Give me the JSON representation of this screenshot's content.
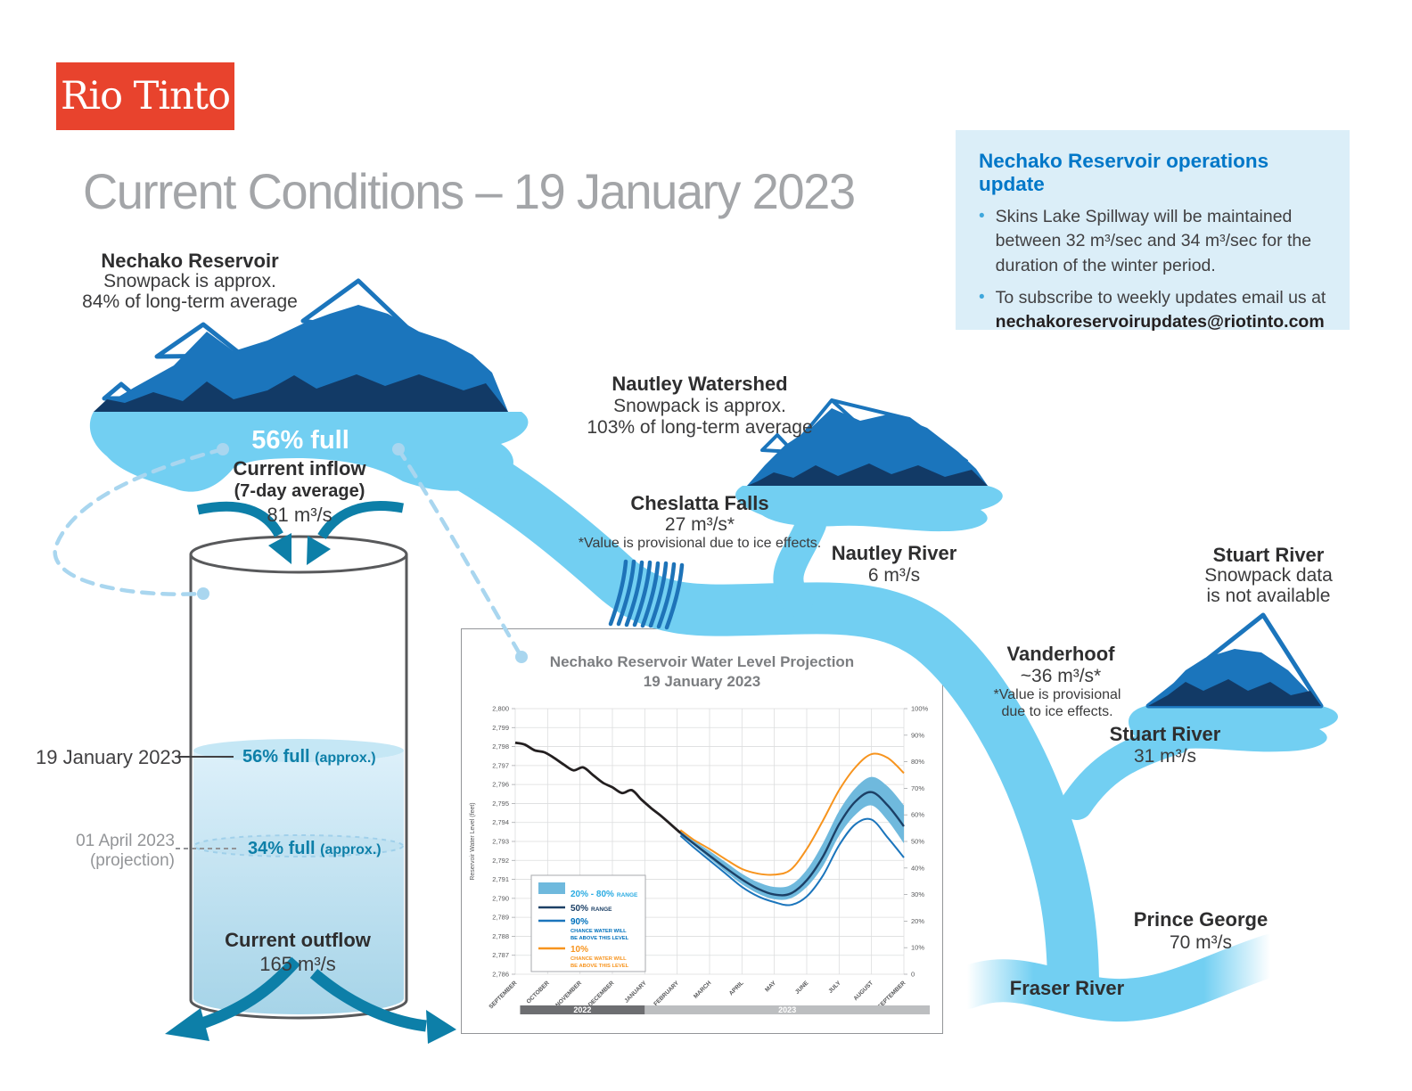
{
  "brand": {
    "logo_text": "Rio Tinto"
  },
  "header": {
    "title": "Current Conditions – 19 January 2023"
  },
  "colors": {
    "accent_blue": "#0077c8",
    "river": "#72cff2",
    "mountain_mid": "#1b75bc",
    "mountain_dark": "#123a66",
    "teal": "#0d7fa8",
    "logo_red": "#e8432d",
    "infobox_bg": "#dbeef8",
    "orange": "#f7941e",
    "navy": "#1c4066",
    "band": "#6fb9dd"
  },
  "info_box": {
    "heading": "Nechako Reservoir operations update",
    "bullet1": "Skins Lake Spillway will be maintained between 32 m³/sec and 34 m³/sec for the duration of the winter period.",
    "bullet2": "To subscribe to weekly updates email us at",
    "email": "nechakoreservoirupdates@riotinto.com"
  },
  "nechako": {
    "name": "Nechako Reservoir",
    "snow1": "Snowpack is approx.",
    "snow2": "84% of long-term average",
    "fullness": "56% full",
    "inflow_label": "Current inflow",
    "inflow_sub": "(7-day average)",
    "inflow_value": "81 m³/s"
  },
  "tank": {
    "now_date": "19 January 2023",
    "now_level": "56% full",
    "now_note": "(approx.)",
    "proj_date": "01 April 2023",
    "proj_label": "(projection)",
    "proj_level": "34% full",
    "proj_note": "(approx.)",
    "outflow_label": "Current outflow",
    "outflow_value": "165 m³/s"
  },
  "nautley": {
    "name": "Nautley Watershed",
    "snow1": "Snowpack is approx.",
    "snow2": "103% of long-term average"
  },
  "cheslatta": {
    "name": "Cheslatta Falls",
    "value": "27 m³/s*",
    "note": "*Value is provisional due to ice effects."
  },
  "nautley_river": {
    "name": "Nautley River",
    "value": "6 m³/s"
  },
  "stuart_watershed": {
    "name": "Stuart River",
    "snow1": "Snowpack data",
    "snow2": "is not available"
  },
  "vanderhoof": {
    "name": "Vanderhoof",
    "value": "~36 m³/s*",
    "note1": "*Value is provisional",
    "note2": "due to ice effects."
  },
  "stuart_river": {
    "name": "Stuart River",
    "value": "31 m³/s"
  },
  "prince_george": {
    "name": "Prince George",
    "value": "70 m³/s"
  },
  "fraser": {
    "name": "Fraser River"
  },
  "chart_data": {
    "type": "line",
    "title": "Nechako Reservoir Water Level Projection",
    "subtitle": "19 January 2023",
    "ylabel": "Reservoir Water Level (feet)",
    "ylim": [
      2786,
      2800
    ],
    "right_axis_ticks": [
      "0",
      "10%",
      "20%",
      "30%",
      "40%",
      "50%",
      "60%",
      "70%",
      "80%",
      "90%",
      "100%"
    ],
    "months": [
      "SEPTEMBER",
      "OCTOBER",
      "NOVEMBER",
      "DECEMBER",
      "JANUARY",
      "FEBRUARY",
      "MARCH",
      "APRIL",
      "MAY",
      "JUNE",
      "JULY",
      "AUGUST",
      "SEPTEMBER"
    ],
    "year_bars": [
      {
        "label": "2022",
        "from": 0.15,
        "to": 4.0,
        "color": "#6d6e71"
      },
      {
        "label": "2023",
        "from": 4.0,
        "to": 12.8,
        "color": "#bcbec0"
      }
    ],
    "series": {
      "observed": {
        "name": "Observed water level",
        "color": "#231f20",
        "x": [
          0,
          0.3,
          0.6,
          0.9,
          1.2,
          1.5,
          1.8,
          2.1,
          2.4,
          2.7,
          3.0,
          3.3,
          3.6,
          3.9,
          4.2,
          4.5,
          4.8,
          5.1
        ],
        "y": [
          2798.2,
          2798.1,
          2797.8,
          2797.7,
          2797.4,
          2797.05,
          2796.75,
          2796.9,
          2796.5,
          2796.1,
          2795.85,
          2795.55,
          2795.7,
          2795.2,
          2794.75,
          2794.35,
          2793.9,
          2793.45
        ]
      },
      "band": {
        "name": "20% - 80% range",
        "color": "#6fb9dd",
        "x": [
          5.1,
          5.5,
          6,
          6.5,
          7,
          7.5,
          8,
          8.5,
          9,
          9.5,
          10,
          10.5,
          11,
          11.5,
          12
        ],
        "top": [
          2793.55,
          2793.05,
          2792.5,
          2791.9,
          2791.3,
          2790.85,
          2790.6,
          2790.7,
          2791.5,
          2792.9,
          2794.6,
          2795.8,
          2796.4,
          2795.9,
          2794.9
        ],
        "bottom": [
          2793.35,
          2792.8,
          2792.1,
          2791.4,
          2790.75,
          2790.25,
          2789.95,
          2790.0,
          2790.6,
          2791.7,
          2793.3,
          2794.4,
          2794.9,
          2794.1,
          2792.9
        ]
      },
      "p10": {
        "name": "10% chance water will be above this level",
        "color": "#f7941e",
        "x": [
          5.1,
          5.5,
          6,
          6.5,
          7,
          7.5,
          8,
          8.5,
          9,
          9.5,
          10,
          10.5,
          11,
          11.5,
          12
        ],
        "y": [
          2793.6,
          2793.1,
          2792.6,
          2792.05,
          2791.55,
          2791.3,
          2791.25,
          2791.5,
          2792.6,
          2794.1,
          2795.7,
          2796.9,
          2797.6,
          2797.4,
          2796.6
        ]
      },
      "p50": {
        "name": "50% range",
        "color": "#1c4066",
        "x": [
          5.1,
          5.5,
          6,
          6.5,
          7,
          7.5,
          8,
          8.5,
          9,
          9.5,
          10,
          10.5,
          11,
          11.5,
          12
        ],
        "y": [
          2793.45,
          2792.9,
          2792.25,
          2791.6,
          2791.0,
          2790.5,
          2790.2,
          2790.25,
          2790.95,
          2792.2,
          2793.9,
          2795.1,
          2795.6,
          2794.9,
          2793.8
        ]
      },
      "p90": {
        "name": "90% chance water will be above this level",
        "color": "#1b75bc",
        "x": [
          5.1,
          5.5,
          6,
          6.5,
          7,
          7.5,
          8,
          8.5,
          9,
          9.5,
          10,
          10.5,
          11,
          11.5,
          12
        ],
        "y": [
          2793.3,
          2792.7,
          2792.0,
          2791.3,
          2790.6,
          2790.1,
          2789.8,
          2789.65,
          2790.1,
          2791.2,
          2792.8,
          2793.9,
          2794.15,
          2793.2,
          2792.15
        ]
      }
    },
    "legend": [
      {
        "type": "swatch",
        "color": "#6fb9dd",
        "big": "20% - 80%",
        "small1": "RANGE",
        "small2": "",
        "text_color": "#29abe2"
      },
      {
        "type": "line",
        "color": "#1c4066",
        "big": "50%",
        "small1": "RANGE",
        "small2": "",
        "text_color": "#1c4066"
      },
      {
        "type": "line",
        "color": "#1b75bc",
        "big": "90%",
        "small1": "CHANCE WATER WILL",
        "small2": "BE ABOVE THIS LEVEL",
        "text_color": "#0071bc"
      },
      {
        "type": "line",
        "color": "#f7941e",
        "big": "10%",
        "small1": "CHANCE WATER WILL",
        "small2": "BE ABOVE THIS LEVEL",
        "text_color": "#f7941e"
      }
    ]
  }
}
